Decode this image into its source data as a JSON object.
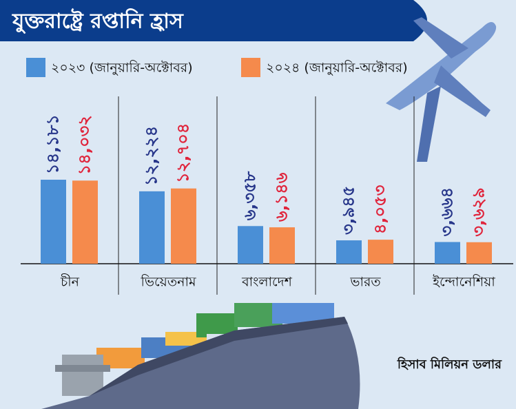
{
  "chart_data": {
    "type": "bar",
    "title": "যুক্তরাষ্ট্রে রপ্তানি হ্রাস",
    "note": "হিসাব মিলিয়ন ডলার",
    "categories": [
      "চীন",
      "ভিয়েতনাম",
      "বাংলাদেশ",
      "ভারত",
      "ইন্দোনেশিয়া"
    ],
    "series": [
      {
        "name": "২০২৩ (জানুয়ারি-অক্টোবর)",
        "color": "#4a8fd6",
        "label_color": "#27368a",
        "values": [
          14181,
          12224,
          6358,
          3945,
          3664
        ],
        "value_labels": [
          "১৪,১৮১",
          "১২,২২৪",
          "৬,৩৫৮",
          "৩,৯৪৫",
          "৩,৬৬৪"
        ]
      },
      {
        "name": "২০২৪ (জানুয়ারি-অক্টোবর)",
        "color": "#f58a4c",
        "label_color": "#e0253c",
        "values": [
          14032,
          12704,
          6146,
          4053,
          3629
        ],
        "value_labels": [
          "১৪,০৩২",
          "১২,৭০৪",
          "৬,১৪৬",
          "৪,০৫৩",
          "৩,৬২৯"
        ]
      }
    ]
  }
}
